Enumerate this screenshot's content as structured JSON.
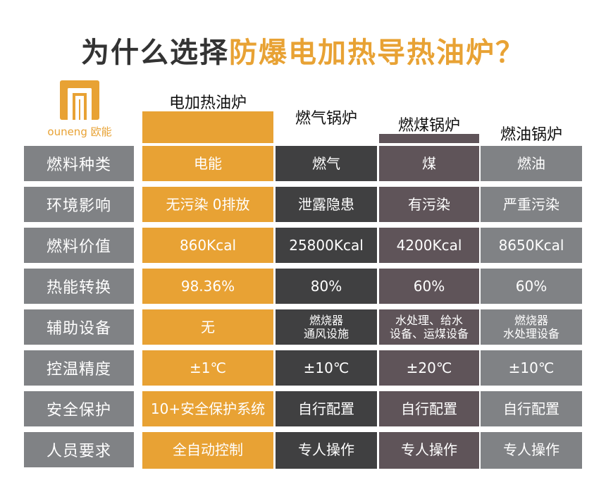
{
  "title": {
    "prefix": "为什么选择",
    "highlight": "防爆电加热导热油炉？"
  },
  "logo": {
    "brand": "ouneng 欧能",
    "icon": "ouneng-logo-icon"
  },
  "colors": {
    "orange": "#e8a234",
    "dark": "#404041",
    "purple": "#5f5459",
    "grey": "#808285",
    "label": "#808285"
  },
  "columns": [
    {
      "name": "电加热油炉"
    },
    {
      "name": "燃气锅炉"
    },
    {
      "name": "燃煤锅炉"
    },
    {
      "name": "燃油锅炉"
    }
  ],
  "rows": [
    {
      "label": "燃料种类",
      "values": [
        "电能",
        "燃气",
        "煤",
        "燃油"
      ]
    },
    {
      "label": "环境影响",
      "values": [
        "无污染 0排放",
        "泄露隐患",
        "有污染",
        "严重污染"
      ]
    },
    {
      "label": "燃料价值",
      "values": [
        "860Kcal",
        "25800Kcal",
        "4200Kcal",
        "8650Kcal"
      ]
    },
    {
      "label": "热能转换",
      "values": [
        "98.36%",
        "80%",
        "60%",
        "60%"
      ]
    },
    {
      "label": "辅助设备",
      "values": [
        "无",
        "燃烧器\n通风设施",
        "水处理、给水\n设备、运煤设备",
        "燃烧器\n水处理设备"
      ]
    },
    {
      "label": "控温精度",
      "values": [
        "±1℃",
        "±10℃",
        "±20℃",
        "±10℃"
      ]
    },
    {
      "label": "安全保护",
      "values": [
        "10+安全保护系统",
        "自行配置",
        "自行配置",
        "自行配置"
      ]
    },
    {
      "label": "人员要求",
      "values": [
        "全自动控制",
        "专人操作",
        "专人操作",
        "专人操作"
      ]
    }
  ]
}
